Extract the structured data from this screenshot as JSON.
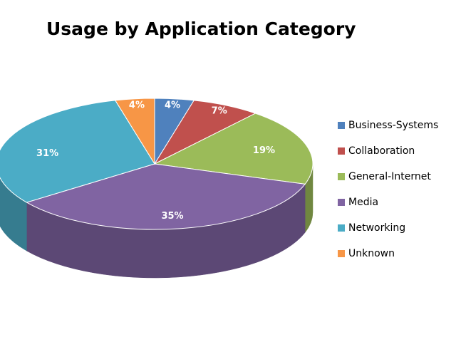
{
  "chart_data": {
    "type": "pie3d",
    "title": "Usage by Application Category",
    "categories": [
      "Business-Systems",
      "Collaboration",
      "General-Internet",
      "Media",
      "Networking",
      "Unknown"
    ],
    "values": [
      4,
      7,
      19,
      35,
      31,
      4
    ],
    "value_labels": [
      "4%",
      "7%",
      "19%",
      "35%",
      "31%",
      "4%"
    ],
    "colors": [
      "#4f81bd",
      "#c0504d",
      "#9bbb59",
      "#8064a2",
      "#4bacc6",
      "#f79646"
    ],
    "legend": "right"
  }
}
